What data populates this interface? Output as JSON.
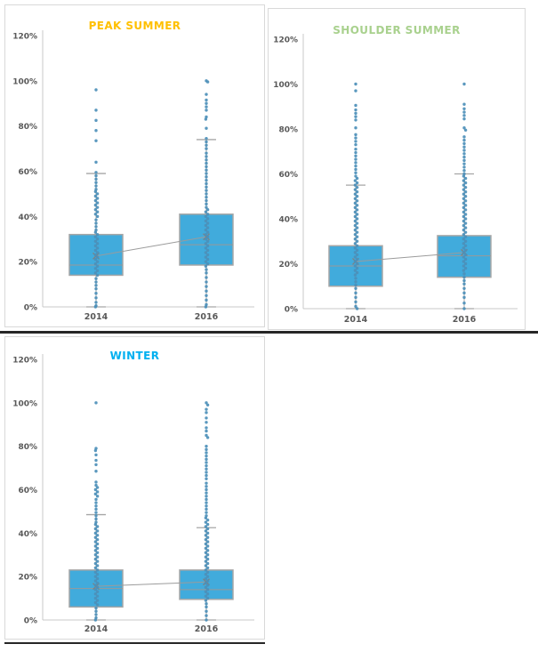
{
  "style": {
    "box_fill": "#41abdc",
    "box_border": "#a6a6a6",
    "dot_color": "#4c8fb9",
    "whisker_color": "#a6a6a6",
    "median_color": "#999999",
    "mean_color": "#808080",
    "connector_color": "#9b9b9b",
    "axis_line_color": "#c9c9c9",
    "tick_text_color": "#595959",
    "panel_border_color": "#d9d9d9",
    "separator_color": "#262626"
  },
  "chart_data": [
    {
      "type": "box",
      "title": "PEAK SUMMER",
      "title_color": "#ffc000",
      "categories": [
        "2014",
        "2016"
      ],
      "y_ticks": [
        "0%",
        "20%",
        "40%",
        "60%",
        "80%",
        "100%",
        "120%"
      ],
      "ylim": [
        0,
        120
      ],
      "grid": false,
      "legend": "none",
      "series": [
        {
          "category": "2014",
          "min": 0,
          "q1": 14,
          "median": 18.5,
          "mean": 22.5,
          "q3": 32,
          "whisker_low": 0,
          "whisker_high": 59,
          "points": [
            96,
            87,
            82.5,
            78,
            73.5,
            64,
            59.5,
            58,
            56.5,
            55,
            53.5,
            52,
            51,
            50,
            49,
            48,
            47,
            46,
            45,
            44,
            43,
            42,
            41,
            40,
            38.5,
            37,
            35.5,
            34,
            33,
            32,
            31,
            30,
            29,
            28,
            27,
            26,
            25,
            24,
            23,
            22,
            21,
            20,
            19,
            18,
            17,
            16,
            15,
            14,
            12.5,
            11,
            9.5,
            8,
            6,
            4,
            2,
            0.5,
            0
          ]
        },
        {
          "category": "2016",
          "min": 0,
          "q1": 18.5,
          "median": 27.5,
          "mean": 31,
          "q3": 41,
          "whisker_low": 0,
          "whisker_high": 74,
          "points": [
            100,
            99.5,
            94,
            91.5,
            90,
            88.5,
            87,
            84,
            83,
            79,
            74.5,
            73,
            71.5,
            70,
            68,
            66.5,
            65,
            63.5,
            62,
            60.5,
            59,
            57.5,
            56,
            54.5,
            53,
            51.5,
            50,
            48.5,
            47,
            45.5,
            44,
            43,
            42,
            41,
            40,
            39,
            38,
            37,
            36,
            35,
            34,
            33,
            32,
            31,
            30,
            29,
            28,
            27,
            26,
            25,
            24,
            23,
            22,
            21,
            20,
            19,
            18,
            16.5,
            15,
            13,
            11,
            9,
            7,
            5,
            3,
            1,
            0
          ]
        }
      ]
    },
    {
      "type": "box",
      "title": "SHOULDER SUMMER",
      "title_color": "#a9d18e",
      "categories": [
        "2014",
        "2016"
      ],
      "y_ticks": [
        "0%",
        "20%",
        "40%",
        "60%",
        "80%",
        "100%",
        "120%"
      ],
      "ylim": [
        0,
        120
      ],
      "grid": false,
      "legend": "none",
      "series": [
        {
          "category": "2014",
          "min": 0,
          "q1": 10,
          "median": 19,
          "mean": 21,
          "q3": 28,
          "whisker_low": 0,
          "whisker_high": 55,
          "points": [
            100,
            97,
            90.5,
            88.5,
            87,
            85.5,
            84,
            80.5,
            77.5,
            76,
            74.5,
            73,
            71,
            69.5,
            68,
            66.5,
            65,
            63.5,
            62,
            60.5,
            59,
            58,
            57,
            56,
            55,
            54,
            53,
            52,
            51,
            50,
            49,
            48,
            47,
            46,
            45,
            44,
            43,
            42,
            41,
            40,
            39,
            38,
            37,
            36,
            35,
            34,
            33,
            32,
            31,
            30,
            29,
            28,
            27,
            26,
            25,
            24,
            23,
            22,
            21,
            20,
            19,
            18,
            17,
            16,
            15,
            13.5,
            12,
            10.5,
            9,
            7,
            5,
            3,
            1,
            0
          ]
        },
        {
          "category": "2016",
          "min": 0,
          "q1": 14,
          "median": 23.5,
          "mean": 25,
          "q3": 32.5,
          "whisker_low": 0,
          "whisker_high": 60,
          "points": [
            100,
            91,
            89,
            87.5,
            86,
            84.5,
            80.5,
            79.5,
            76.5,
            75,
            73.5,
            72,
            70.5,
            69,
            67.5,
            66,
            64.5,
            63,
            61.5,
            60,
            59,
            58,
            57,
            56,
            55,
            54,
            53,
            52,
            51,
            50,
            49,
            48,
            47,
            46,
            45,
            44,
            43,
            42,
            41,
            40,
            39,
            38,
            37,
            36,
            35,
            34,
            33,
            32,
            31,
            30,
            29,
            28,
            27,
            26,
            25,
            24,
            23,
            22,
            21,
            20,
            19,
            18,
            17,
            15.5,
            14,
            12.5,
            11,
            9,
            7,
            5,
            2.5,
            0
          ]
        }
      ]
    },
    {
      "type": "box",
      "title": "WINTER",
      "title_color": "#00b0f0",
      "categories": [
        "2014",
        "2016"
      ],
      "y_ticks": [
        "0%",
        "20%",
        "40%",
        "60%",
        "80%",
        "100%",
        "120%"
      ],
      "ylim": [
        0,
        120
      ],
      "grid": false,
      "legend": "none",
      "series": [
        {
          "category": "2014",
          "min": 0,
          "q1": 6,
          "median": 14.5,
          "mean": 15.5,
          "q3": 23,
          "whisker_low": 0,
          "whisker_high": 48.5,
          "points": [
            100,
            79,
            78,
            76,
            73.5,
            71.5,
            68.5,
            63.5,
            62,
            61,
            60,
            59,
            58,
            57,
            55.5,
            54,
            52.5,
            51,
            49.5,
            48,
            46.5,
            45,
            44,
            43,
            42,
            41,
            40,
            39,
            38,
            37,
            36,
            35,
            34,
            33,
            32,
            31,
            30,
            29,
            28,
            27,
            26,
            25,
            24,
            23,
            22,
            21,
            20,
            19,
            18,
            17,
            16,
            15,
            14,
            13,
            12,
            11,
            10,
            9,
            8,
            7,
            5.5,
            4,
            2.5,
            1,
            0
          ]
        },
        {
          "category": "2016",
          "min": 0,
          "q1": 9.5,
          "median": 14,
          "mean": 17.5,
          "q3": 23,
          "whisker_low": 0,
          "whisker_high": 42.5,
          "points": [
            100,
            99,
            97,
            95.5,
            93,
            91,
            88.5,
            87,
            85,
            84,
            80,
            78.5,
            77,
            75.5,
            74,
            72.5,
            71,
            69.5,
            68,
            66.5,
            65,
            63,
            61.5,
            60,
            58.5,
            57,
            55.5,
            54,
            52.5,
            51,
            49.5,
            48,
            47,
            46,
            45,
            44,
            43,
            42,
            41,
            40,
            39,
            38,
            37,
            36,
            35,
            34,
            33,
            32,
            31,
            30,
            29,
            28,
            27,
            26,
            25,
            24,
            23,
            22,
            21,
            20,
            19,
            18,
            17,
            16,
            15,
            14,
            13,
            12,
            11,
            10,
            9,
            7.5,
            6,
            4,
            2,
            0
          ]
        }
      ]
    }
  ]
}
